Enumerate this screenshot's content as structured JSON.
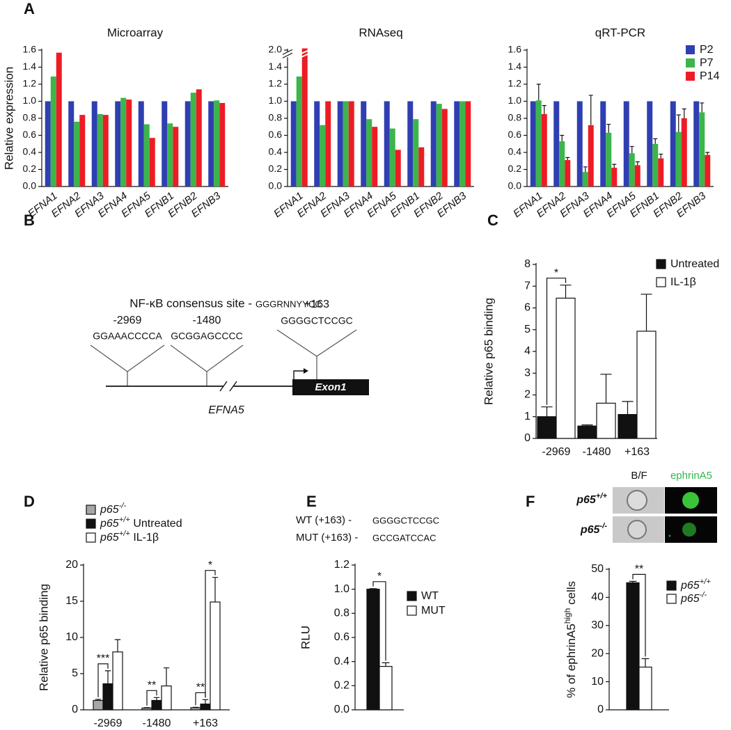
{
  "panel_labels": [
    "A",
    "B",
    "C",
    "D",
    "E",
    "F"
  ],
  "chart_data": [
    {
      "type": "bar",
      "title": "Microarray",
      "ylabel": "Relative expression",
      "categories": [
        "EFNA1",
        "EFNA2",
        "EFNA3",
        "EFNA4",
        "EFNA5",
        "EFNB1",
        "EFNB2",
        "EFNB3"
      ],
      "series": [
        {
          "name": "P2",
          "color": "#2f3fb1",
          "values": [
            1.0,
            1.0,
            1.0,
            1.0,
            1.0,
            1.0,
            1.0,
            1.0
          ]
        },
        {
          "name": "P7",
          "color": "#3cb54a",
          "values": [
            1.29,
            0.76,
            0.85,
            1.04,
            0.73,
            0.74,
            1.1,
            1.01
          ]
        },
        {
          "name": "P14",
          "color": "#ed1c24",
          "values": [
            1.57,
            0.84,
            0.84,
            1.02,
            0.57,
            0.7,
            1.14,
            0.98
          ]
        }
      ],
      "ylim": [
        0,
        1.6
      ],
      "yticks": [
        {
          "value": 0,
          "label": "0.0"
        },
        0.2,
        0.4,
        0.6,
        0.8,
        {
          "value": 1,
          "label": "1.0"
        },
        1.2,
        1.4,
        1.6
      ]
    },
    {
      "type": "bar",
      "title": "RNAseq",
      "categories": [
        "EFNA1",
        "EFNA2",
        "EFNA3",
        "EFNA4",
        "EFNA5",
        "EFNB1",
        "EFNB2",
        "EFNB3"
      ],
      "series": [
        {
          "name": "P2",
          "color": "#2f3fb1",
          "values": [
            1.0,
            1.0,
            1.0,
            1.0,
            1.0,
            1.0,
            1.0,
            1.0
          ]
        },
        {
          "name": "P7",
          "color": "#3cb54a",
          "values": [
            1.29,
            0.72,
            1.0,
            0.79,
            0.68,
            0.79,
            0.97,
            1.0
          ]
        },
        {
          "name": "P14",
          "color": "#ed1c24",
          "values": [
            2.02,
            1.0,
            1.0,
            0.7,
            0.43,
            0.46,
            0.91,
            1.0
          ]
        }
      ],
      "ylim": [
        0,
        2.0
      ],
      "ybreak": [
        1.5,
        1.9
      ],
      "yticks": [
        {
          "value": 0,
          "label": "0.0"
        },
        0.2,
        0.4,
        0.6,
        0.8,
        {
          "value": 1,
          "label": "1.0"
        },
        1.2,
        1.4,
        {
          "value": 2,
          "label": "2.0"
        }
      ]
    },
    {
      "type": "bar",
      "title": "qRT-PCR",
      "legend": true,
      "categories": [
        "EFNA1",
        "EFNA2",
        "EFNA3",
        "EFNA4",
        "EFNA5",
        "EFNB1",
        "EFNB2",
        "EFNB3"
      ],
      "series": [
        {
          "name": "P2",
          "color": "#2f3fb1",
          "values": [
            1.0,
            1.0,
            1.0,
            1.0,
            1.0,
            1.0,
            1.0,
            1.0
          ]
        },
        {
          "name": "P7",
          "color": "#3cb54a",
          "values": [
            1.01,
            0.53,
            0.17,
            0.63,
            0.39,
            0.5,
            0.64,
            0.87
          ],
          "errors": [
            0.19,
            0.07,
            0.06,
            0.1,
            0.08,
            0.06,
            0.2,
            0.11
          ]
        },
        {
          "name": "P14",
          "color": "#ed1c24",
          "values": [
            0.85,
            0.31,
            0.72,
            0.22,
            0.25,
            0.33,
            0.8,
            0.37
          ],
          "errors": [
            0.1,
            0.03,
            0.35,
            0.04,
            0.04,
            0.05,
            0.11,
            0.03
          ]
        }
      ],
      "ylim": [
        0,
        1.6
      ],
      "yticks": [
        {
          "value": 0,
          "label": "0.0"
        },
        0.2,
        0.4,
        0.6,
        0.8,
        {
          "value": 1,
          "label": "1.0"
        },
        1.2,
        1.4,
        1.6
      ]
    },
    {
      "type": "bar",
      "ylabel": "Relative p65 binding",
      "legend": true,
      "categories": [
        "-2969",
        "-1480",
        "+163"
      ],
      "series": [
        {
          "name": "Untreated",
          "color": "#111111",
          "values": [
            1.0,
            0.57,
            1.1
          ],
          "errors": [
            0.45,
            0.05,
            0.6
          ]
        },
        {
          "name": "IL-1β",
          "color": "#ffffff",
          "values": [
            6.45,
            1.62,
            4.93
          ],
          "errors": [
            0.6,
            1.33,
            1.7
          ]
        }
      ],
      "ylim": [
        0,
        8
      ],
      "yticks": [
        0,
        1,
        2,
        3,
        4,
        5,
        6,
        7,
        8
      ],
      "significance": [
        {
          "label": "*",
          "category": "-2969",
          "series": [
            "Untreated",
            "IL-1β"
          ]
        }
      ]
    },
    {
      "type": "bar",
      "ylabel": "Relative p65 binding",
      "legend": true,
      "categories": [
        "-2969",
        "-1480",
        "+163"
      ],
      "series": [
        {
          "name": "p65-/-",
          "color": "#a6a6a6",
          "values": [
            1.3,
            0.25,
            0.3
          ],
          "errors": [
            0.15,
            0.05,
            0.05
          ]
        },
        {
          "name": "p65+/+ Untreated",
          "color": "#111111",
          "values": [
            3.6,
            1.3,
            0.8
          ],
          "errors": [
            1.8,
            0.4,
            0.6
          ]
        },
        {
          "name": "p65+/+ IL-1β",
          "color": "#ffffff",
          "values": [
            8.0,
            3.3,
            14.9
          ],
          "errors": [
            1.7,
            2.5,
            3.4
          ]
        }
      ],
      "ylim": [
        0,
        20
      ],
      "yticks": [
        0,
        5,
        10,
        15,
        20
      ],
      "significance": [
        {
          "label": "***",
          "category": "-2969",
          "series": [
            "p65-/-",
            "p65+/+ Untreated"
          ]
        },
        {
          "label": "**",
          "category": "-1480",
          "series": [
            "p65-/-",
            "p65+/+ Untreated"
          ]
        },
        {
          "label": "**",
          "category": "+163",
          "series": [
            "p65-/-",
            "p65+/+ Untreated"
          ]
        },
        {
          "label": "*",
          "category": "+163",
          "series": [
            "p65+/+ Untreated",
            "p65+/+ IL-1β"
          ]
        }
      ]
    },
    {
      "type": "bar",
      "ylabel": "RLU",
      "legend": true,
      "series": [
        {
          "name": "WT",
          "color": "#111111",
          "values": [
            1.0
          ],
          "errors": [
            0.005
          ]
        },
        {
          "name": "MUT",
          "color": "#ffffff",
          "values": [
            0.36
          ],
          "errors": [
            0.03
          ]
        }
      ],
      "ylim": [
        0,
        1.2
      ],
      "yticks": [
        {
          "value": 0,
          "label": "0.0"
        },
        0.2,
        0.4,
        0.6,
        0.8,
        {
          "value": 1,
          "label": "1.0"
        },
        1.2
      ],
      "significance": [
        {
          "label": "*",
          "series": [
            "WT",
            "MUT"
          ]
        }
      ]
    },
    {
      "type": "bar",
      "ylabel": "% of ephrinA5high cells",
      "legend": true,
      "series": [
        {
          "name": "p65+/+",
          "color": "#111111",
          "values": [
            45.2
          ],
          "errors": [
            0.5
          ]
        },
        {
          "name": "p65-/-",
          "color": "#ffffff",
          "values": [
            15.2
          ],
          "errors": [
            3.0
          ]
        }
      ],
      "ylim": [
        0,
        50
      ],
      "yticks": [
        0,
        10,
        20,
        30,
        40,
        50
      ],
      "significance": [
        {
          "label": "**",
          "series": [
            "p65+/+",
            "p65-/-"
          ]
        }
      ]
    }
  ],
  "diagram_b": {
    "consensus_label": "NF-κB consensus site -",
    "consensus_sequence": "GGGRNNYYCC",
    "sites": [
      {
        "position": "-2969",
        "sequence": "GGAAACCCCA"
      },
      {
        "position": "-1480",
        "sequence": "GCGGAGCCCC"
      },
      {
        "position": "+163",
        "sequence": "GGGGCTCCGC"
      }
    ],
    "exon": "Exon1",
    "gene": "EFNA5"
  },
  "sequences_e": [
    {
      "label": "WT (+163) -",
      "sequence": "GGGGCTCCGC"
    },
    {
      "label": "MUT (+163) -",
      "sequence": "GCCGATCCAC"
    }
  ],
  "images_f": {
    "columns": [
      "B/F",
      "ephrinA5"
    ],
    "rows": [
      "p65+/+",
      "p65-/-"
    ]
  }
}
